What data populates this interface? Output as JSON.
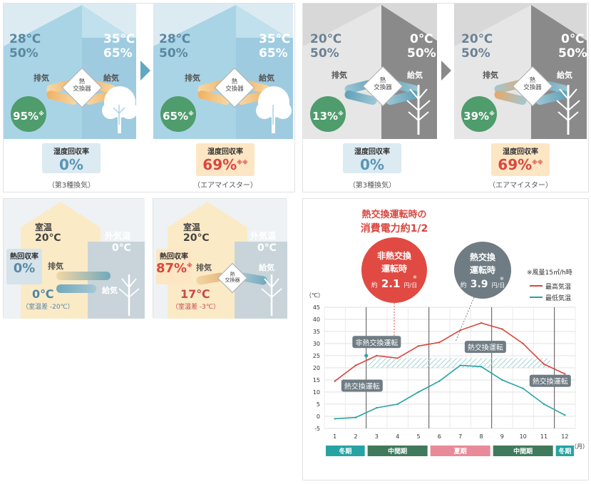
{
  "summer": {
    "left": {
      "indoor_temp": "28℃",
      "indoor_hum": "50%",
      "outdoor_temp": "35℃",
      "outdoor_hum": "65%",
      "exhaust": "排気",
      "supply": "給気",
      "hx_line1": "熱",
      "hx_line2": "交換器",
      "circle_value": "95%",
      "circle_mark": "※",
      "rate_label": "湿度回収率",
      "rate_value": "0%",
      "caption": "（第3種換気）"
    },
    "right": {
      "indoor_temp": "28℃",
      "indoor_hum": "50%",
      "outdoor_temp": "35℃",
      "outdoor_hum": "65%",
      "exhaust": "排気",
      "supply": "給気",
      "hx_line1": "熱",
      "hx_line2": "交換器",
      "circle_value": "65%",
      "circle_mark": "※",
      "rate_label": "湿度回収率",
      "rate_value": "69%",
      "rate_mark": "※※",
      "caption": "（エアマイスター）"
    }
  },
  "winter": {
    "left": {
      "indoor_temp": "20℃",
      "indoor_hum": "50%",
      "outdoor_temp": "0℃",
      "outdoor_hum": "50%",
      "exhaust": "排気",
      "supply": "給気",
      "hx_line1": "熱",
      "hx_line2": "交換器",
      "circle_value": "13%",
      "circle_mark": "※",
      "rate_label": "湿度回収率",
      "rate_value": "0%",
      "caption": "（第3種換気）"
    },
    "right": {
      "indoor_temp": "20℃",
      "indoor_hum": "50%",
      "outdoor_temp": "0℃",
      "outdoor_hum": "50%",
      "exhaust": "排気",
      "supply": "給気",
      "hx_line1": "熱",
      "hx_line2": "交換器",
      "circle_value": "39%",
      "circle_mark": "※",
      "rate_label": "湿度回収率",
      "rate_value": "69%",
      "rate_mark": "※※",
      "caption": "（エアマイスター）"
    }
  },
  "heat": {
    "left": {
      "room_label": "室温",
      "room_temp": "20℃",
      "outside_label": "外気温",
      "outside_temp": "0℃",
      "rate_label": "熱回収率",
      "rate_value": "0%",
      "exhaust": "排気",
      "supply": "給気",
      "result_temp": "0℃",
      "result_note": "（室温差 -20℃）"
    },
    "right": {
      "room_label": "室温",
      "room_temp": "20℃",
      "outside_label": "外気温",
      "outside_temp": "0℃",
      "rate_label": "熱回収率",
      "rate_value": "87%",
      "rate_mark": "※",
      "exhaust": "排気",
      "supply": "給気",
      "hx_line1": "熱",
      "hx_line2": "交換器",
      "result_temp": "17℃",
      "result_note": "（室温差 -3℃）"
    }
  },
  "colors": {
    "summer_sky": "#cfe6ef",
    "summer_house": "#a7d1e3",
    "winter_house": "#8c8c8c",
    "green_circle": "#4a9a6a",
    "blue_text": "#6b8fa3",
    "red": "#d9473f",
    "teal": "#27a3a3",
    "gray_bubble": "#6f7c84",
    "pink_badge": "#fde3c0"
  },
  "chart_data": {
    "type": "line",
    "title": "熱交換運転時の",
    "subtitle": "消費電力約1/2",
    "bubble_non": {
      "line1": "非熱交換",
      "line2": "運転時",
      "approx": "約",
      "value": "2.1",
      "unit": "円/日",
      "mark": "※"
    },
    "bubble_hx": {
      "line1": "熱交換",
      "line2": "運転時",
      "approx": "約",
      "value": "3.9",
      "unit": "円/日",
      "mark": "※"
    },
    "wind_note": "※風量15㎥/h時",
    "ylabel": "（℃）",
    "xlabel": "（月）",
    "ylim": [
      -5,
      45
    ],
    "yticks": [
      "45",
      "40",
      "35",
      "30",
      "25",
      "20",
      "15",
      "10",
      "5",
      "0",
      "-5"
    ],
    "x": [
      "1",
      "2",
      "3",
      "4",
      "5",
      "6",
      "7",
      "8",
      "9",
      "10",
      "11",
      "12"
    ],
    "series": [
      {
        "name": "最高気温",
        "color": "#d9473f",
        "values": [
          14.5,
          21,
          25,
          24,
          29,
          30.5,
          35.5,
          38.5,
          36,
          30,
          21.5,
          17.5
        ]
      },
      {
        "name": "最低気温",
        "color": "#27a3a3",
        "values": [
          -1,
          -0.5,
          3.5,
          5,
          10,
          14.5,
          21,
          20.5,
          15,
          11.5,
          5,
          0.5
        ]
      }
    ],
    "band": [
      20,
      24
    ],
    "annotations": [
      {
        "text": "非熱交換運転",
        "x": 3,
        "y": 30.5
      },
      {
        "text": "熱交換運転",
        "x": 2.3,
        "y": 12.5
      },
      {
        "text": "熱交換運転",
        "x": 8.2,
        "y": 28.5
      },
      {
        "text": "熱交換運転",
        "x": 11.3,
        "y": 14.5
      }
    ],
    "seasons": [
      {
        "label": "冬期",
        "from": 0.5,
        "to": 2.5,
        "color": "#27a3a3"
      },
      {
        "label": "中間期",
        "from": 2.5,
        "to": 5.5,
        "color": "#3f7a5c"
      },
      {
        "label": "夏期",
        "from": 5.5,
        "to": 8.5,
        "color": "#e98a9a"
      },
      {
        "label": "中間期",
        "from": 8.5,
        "to": 11.5,
        "color": "#3f7a5c"
      },
      {
        "label": "冬期",
        "from": 11.5,
        "to": 12.5,
        "color": "#27a3a3"
      }
    ]
  }
}
